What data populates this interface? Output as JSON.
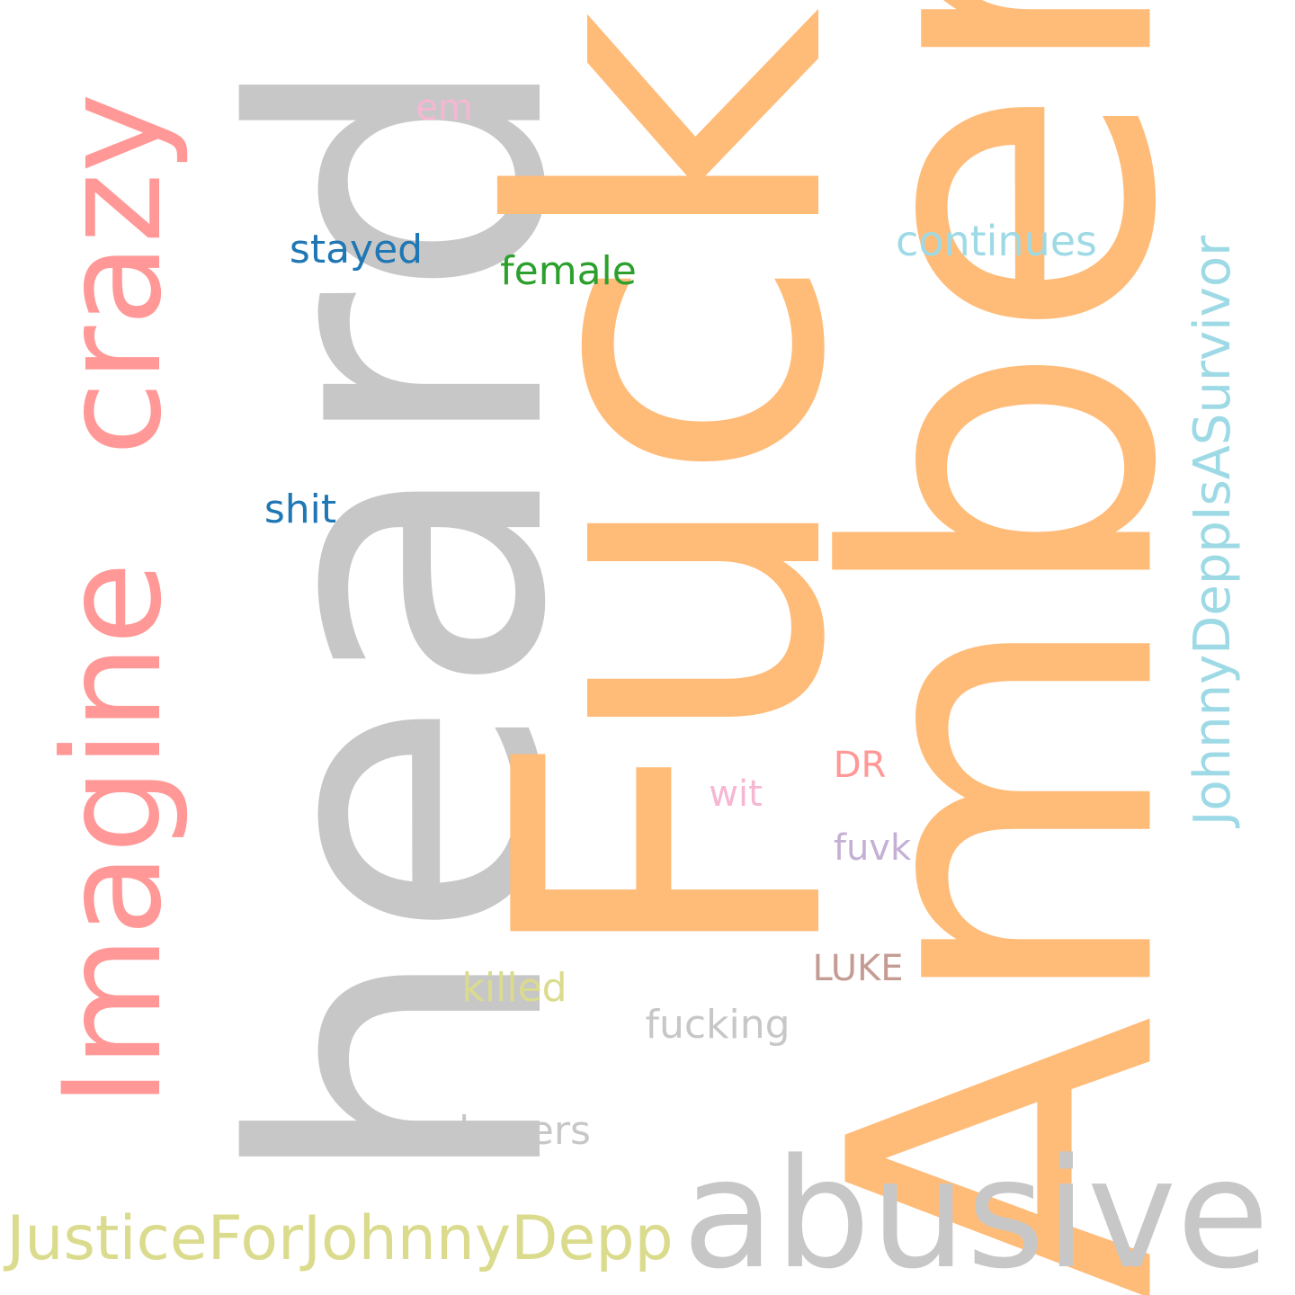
{
  "words": {
    "heard": {
      "text": "heard",
      "color": "#c7c7c7",
      "orientation": "vertical"
    },
    "fuck": {
      "text": "Fuck",
      "color": "#ffbb78",
      "orientation": "vertical"
    },
    "amber": {
      "text": "Amber",
      "color": "#ffbb78",
      "orientation": "vertical"
    },
    "imagine": {
      "text": "Imagine",
      "color": "#ff9896",
      "orientation": "vertical"
    },
    "crazy": {
      "text": "crazy",
      "color": "#ff9896",
      "orientation": "vertical"
    },
    "abusive": {
      "text": "abusive",
      "color": "#c7c7c7",
      "orientation": "horizontal"
    },
    "justice": {
      "text": "JusticeForJohnnyDepp",
      "color": "#dbdb8d",
      "orientation": "horizontal"
    },
    "johnnydepp": {
      "text": "JohnnyDeppIsASurvivor",
      "color": "#9edae5",
      "orientation": "vertical"
    },
    "continues": {
      "text": "continues",
      "color": "#9edae5",
      "orientation": "horizontal"
    },
    "stayed": {
      "text": "stayed",
      "color": "#1f77b4",
      "orientation": "horizontal"
    },
    "female": {
      "text": "female",
      "color": "#2ca02c",
      "orientation": "horizontal"
    },
    "em": {
      "text": "em",
      "color": "#f7b6d2",
      "orientation": "horizontal"
    },
    "shit": {
      "text": "shit",
      "color": "#1f77b4",
      "orientation": "horizontal"
    },
    "dr": {
      "text": "DR",
      "color": "#ff9896",
      "orientation": "horizontal"
    },
    "wit": {
      "text": "wit",
      "color": "#f7b6d2",
      "orientation": "horizontal"
    },
    "fuvk": {
      "text": "fuvk",
      "color": "#c5b0d5",
      "orientation": "horizontal"
    },
    "luke": {
      "text": "LUKE",
      "color": "#c49c94",
      "orientation": "horizontal"
    },
    "killed": {
      "text": "killed",
      "color": "#dbdb8d",
      "orientation": "horizontal"
    },
    "fucking": {
      "text": "fucking",
      "color": "#c7c7c7",
      "orientation": "horizontal"
    },
    "abusers": {
      "text": "abusers",
      "color": "#c7c7c7",
      "orientation": "horizontal"
    }
  }
}
